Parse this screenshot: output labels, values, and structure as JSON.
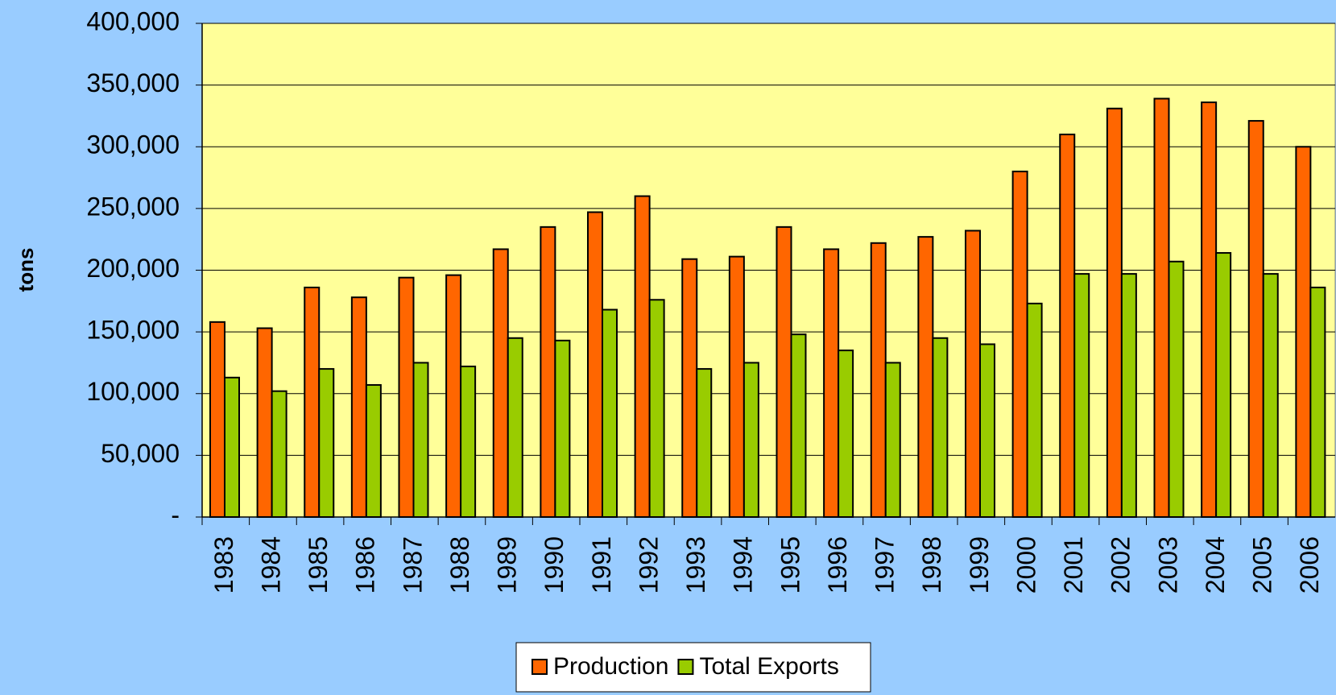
{
  "chart_data": {
    "type": "bar",
    "y_label": "tons",
    "categories": [
      "1983",
      "1984",
      "1985",
      "1986",
      "1987",
      "1988",
      "1989",
      "1990",
      "1991",
      "1992",
      "1993",
      "1994",
      "1995",
      "1996",
      "1997",
      "1998",
      "1999",
      "2000",
      "2001",
      "2002",
      "2003",
      "2004",
      "2005",
      "2006"
    ],
    "series": [
      {
        "name": "Production",
        "color": "#ff6600",
        "values": [
          158000,
          153000,
          186000,
          178000,
          194000,
          196000,
          217000,
          235000,
          247000,
          260000,
          209000,
          211000,
          235000,
          217000,
          222000,
          227000,
          232000,
          280000,
          310000,
          331000,
          339000,
          336000,
          321000,
          300000
        ]
      },
      {
        "name": "Total Exports",
        "color": "#99cc00",
        "values": [
          113000,
          102000,
          120000,
          107000,
          125000,
          122000,
          145000,
          143000,
          168000,
          176000,
          120000,
          125000,
          148000,
          135000,
          125000,
          145000,
          140000,
          173000,
          197000,
          197000,
          207000,
          214000,
          197000,
          186000
        ]
      }
    ],
    "ylim": [
      0,
      400000
    ],
    "yticks": [
      {
        "value": 0,
        "label": "-"
      },
      {
        "value": 50000,
        "label": "50,000"
      },
      {
        "value": 100000,
        "label": "100,000"
      },
      {
        "value": 150000,
        "label": "150,000"
      },
      {
        "value": 200000,
        "label": "200,000"
      },
      {
        "value": 250000,
        "label": "250,000"
      },
      {
        "value": 300000,
        "label": "300,000"
      },
      {
        "value": 350000,
        "label": "350,000"
      },
      {
        "value": 400000,
        "label": "400,000"
      }
    ],
    "grid": true,
    "plot_background": "#ffff99",
    "legend": "bottom"
  }
}
